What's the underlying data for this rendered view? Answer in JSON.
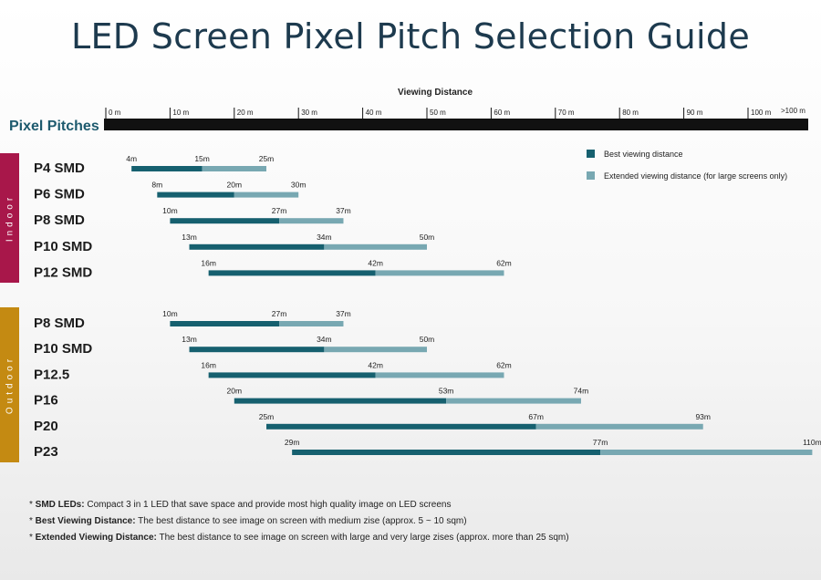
{
  "chart_data": {
    "type": "bar",
    "title": "LED Screen Pixel Pitch Selection Guide",
    "xlabel": "Viewing Distance",
    "ylabel": "Pixel Pitches",
    "xlim": [
      0,
      110
    ],
    "axis_ticks": [
      "0 m",
      "10 m",
      "20 m",
      "30 m",
      "40 m",
      "50 m",
      "60 m",
      "70 m",
      "80 m",
      "90 m",
      "100 m",
      ">100 m"
    ],
    "colors": {
      "best": "#16606f",
      "extended": "#78a8b2",
      "indoor": "#a8174a",
      "outdoor": "#c48a12",
      "axis": "#111111"
    },
    "legend": {
      "placement": "top-right",
      "best": "Best viewing distance",
      "extended": "Extended viewing distance (for large screens only)"
    },
    "groups": [
      {
        "name": "Indoor",
        "rows": [
          {
            "label": "P4 SMD",
            "start": 4,
            "best": 15,
            "end": 25,
            "labels": [
              "4m",
              "15m",
              "25m"
            ]
          },
          {
            "label": "P6 SMD",
            "start": 8,
            "best": 20,
            "end": 30,
            "labels": [
              "8m",
              "20m",
              "30m"
            ]
          },
          {
            "label": "P8 SMD",
            "start": 10,
            "best": 27,
            "end": 37,
            "labels": [
              "10m",
              "27m",
              "37m"
            ]
          },
          {
            "label": "P10 SMD",
            "start": 13,
            "best": 34,
            "end": 50,
            "labels": [
              "13m",
              "34m",
              "50m"
            ]
          },
          {
            "label": "P12 SMD",
            "start": 16,
            "best": 42,
            "end": 62,
            "labels": [
              "16m",
              "42m",
              "62m"
            ]
          }
        ]
      },
      {
        "name": "Outdoor",
        "rows": [
          {
            "label": "P8 SMD",
            "start": 10,
            "best": 27,
            "end": 37,
            "labels": [
              "10m",
              "27m",
              "37m"
            ]
          },
          {
            "label": "P10 SMD",
            "start": 13,
            "best": 34,
            "end": 50,
            "labels": [
              "13m",
              "34m",
              "50m"
            ]
          },
          {
            "label": "P12.5",
            "start": 16,
            "best": 42,
            "end": 62,
            "labels": [
              "16m",
              "42m",
              "62m"
            ]
          },
          {
            "label": "P16",
            "start": 20,
            "best": 53,
            "end": 74,
            "labels": [
              "20m",
              "53m",
              "74m"
            ]
          },
          {
            "label": "P20",
            "start": 25,
            "best": 67,
            "end": 93,
            "labels": [
              "25m",
              "67m",
              "93m"
            ]
          },
          {
            "label": "P23",
            "start": 29,
            "best": 77,
            "end": 110,
            "labels": [
              "29m",
              "77m",
              "110m"
            ]
          }
        ]
      }
    ]
  },
  "footnotes": [
    {
      "label": "SMD LEDs:",
      "text": " Compact 3 in 1 LED that save space and provide most high quality image on LED screens"
    },
    {
      "label": "Best Viewing Distance:",
      "text": " The best distance to see image on screen with medium zise (approx. 5 ~ 10 sqm)"
    },
    {
      "label": "Extended Viewing Distance:",
      "text": " The best distance to see image on screen with large and very large zises (approx. more than 25 sqm)"
    }
  ]
}
